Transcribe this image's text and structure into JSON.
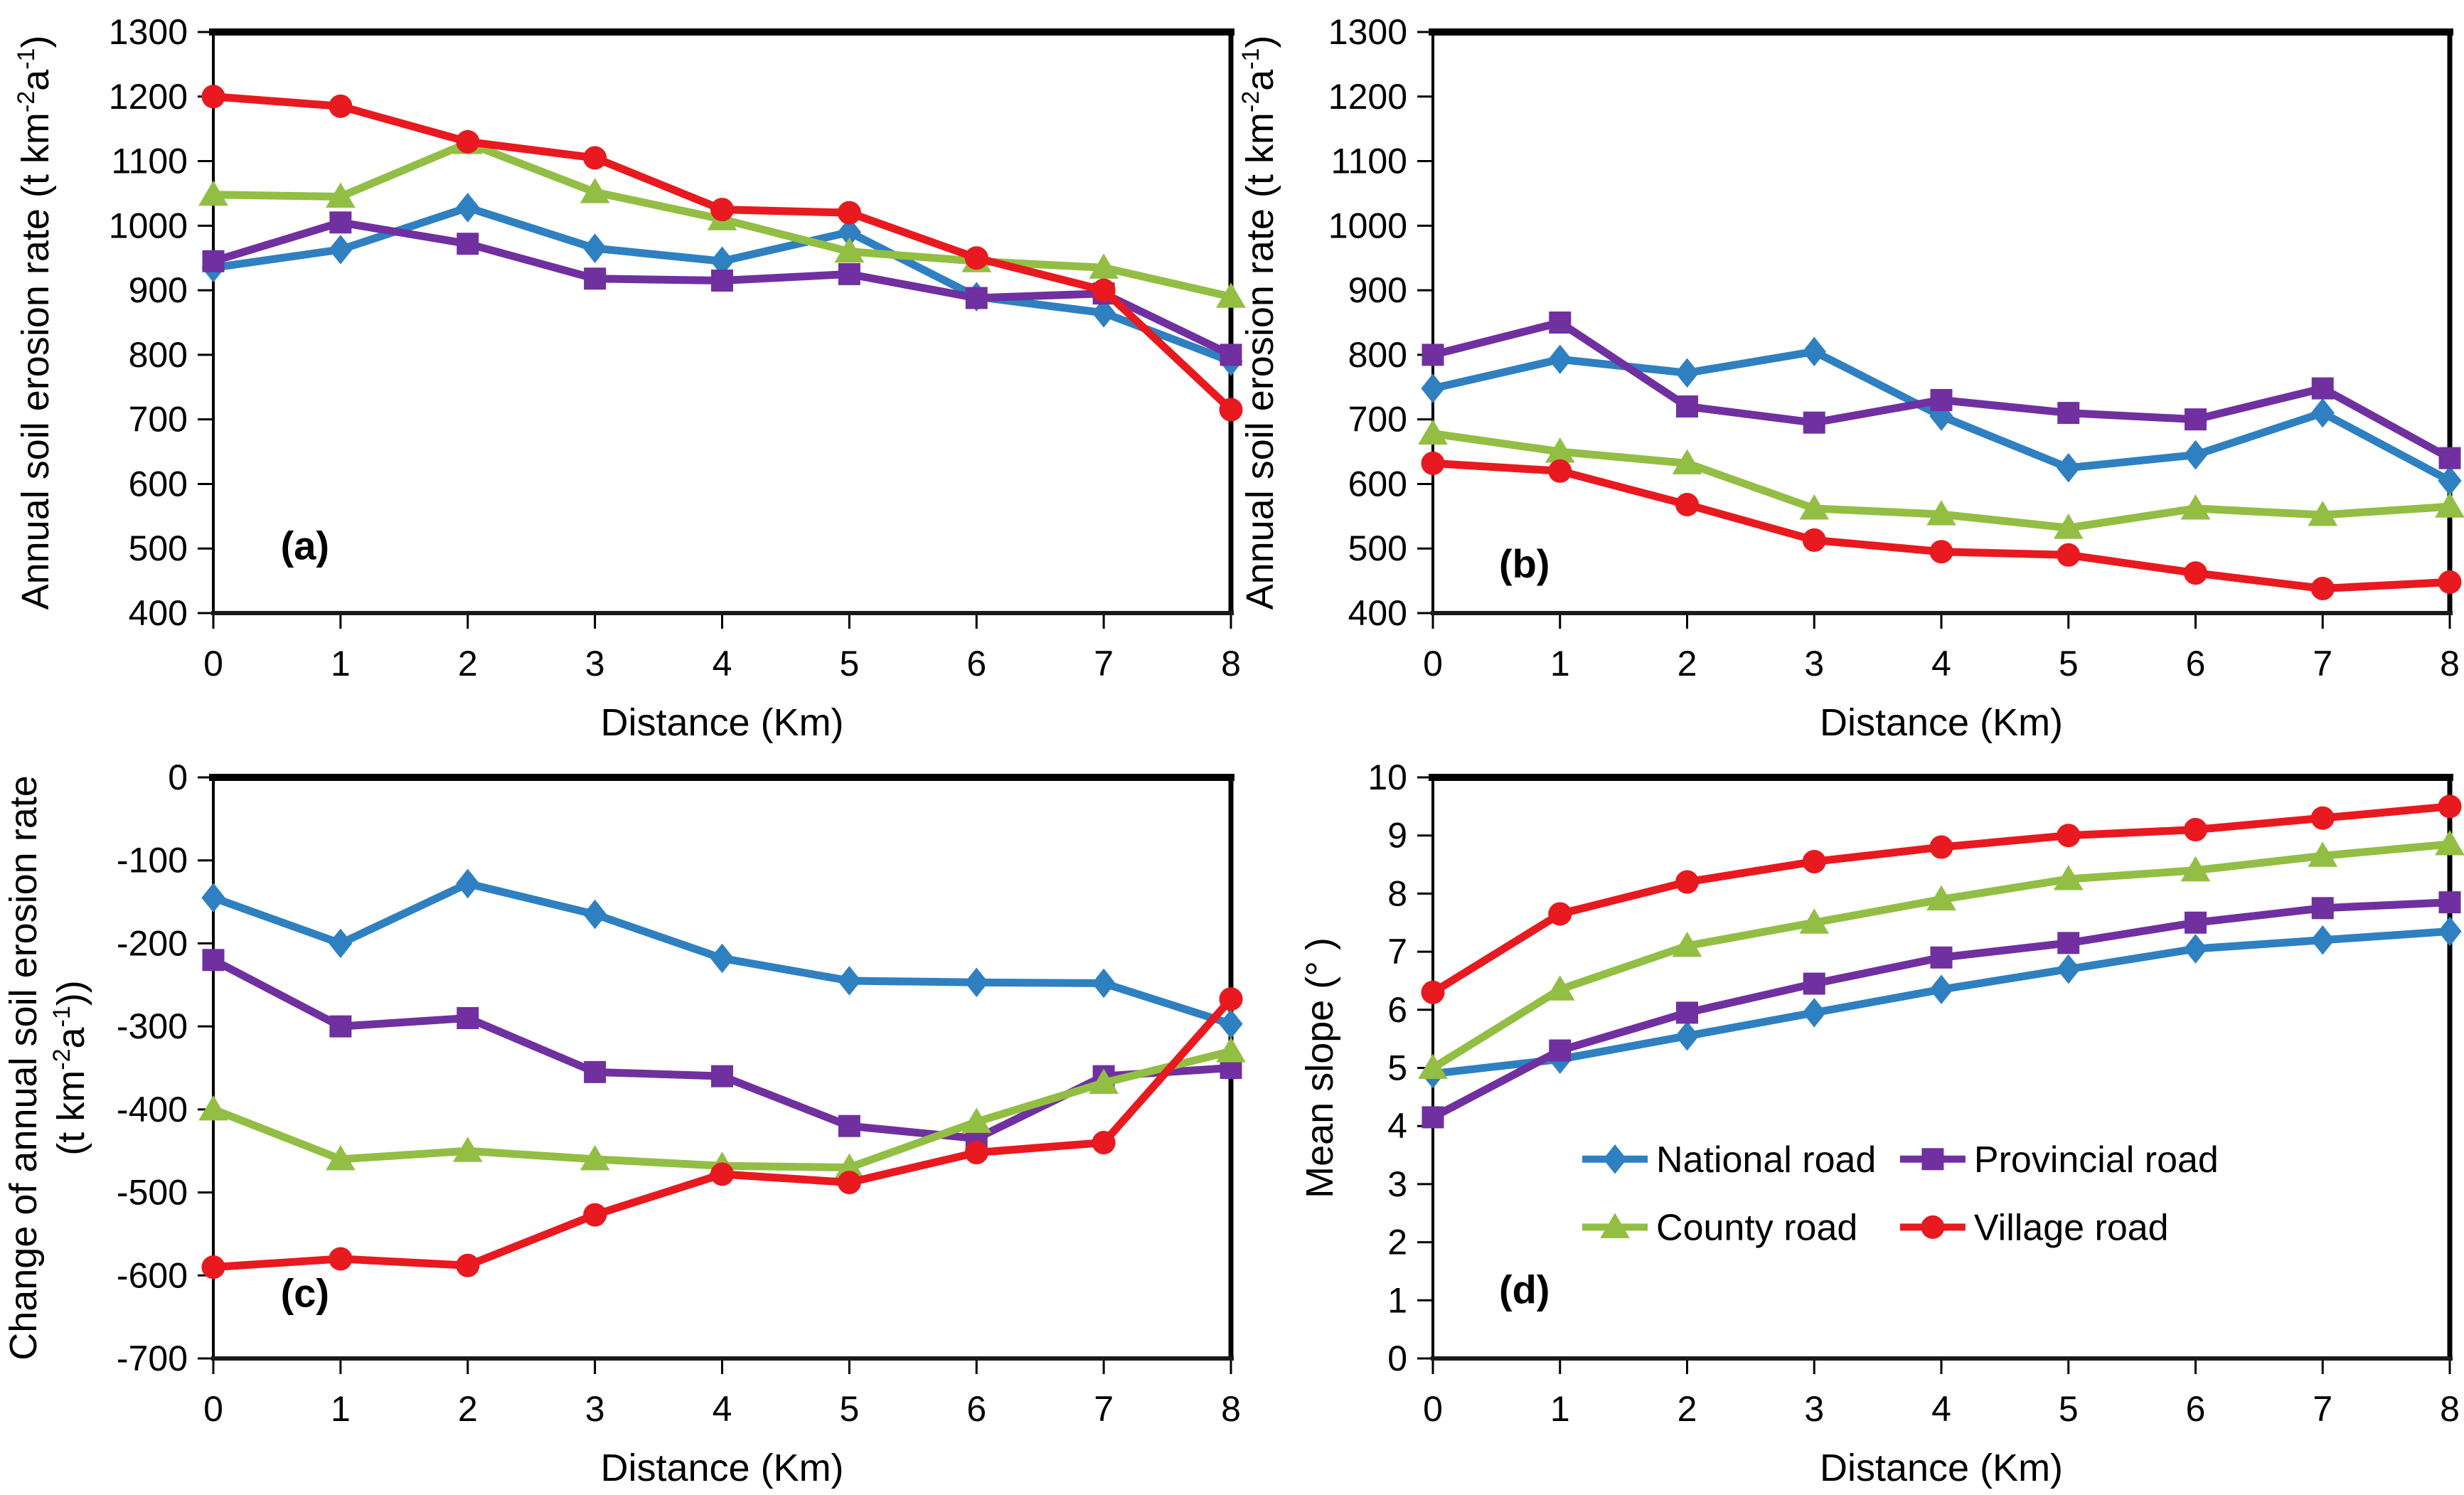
{
  "figure": {
    "background": "#ffffff",
    "axis_color": "#000000",
    "xlabel": "Distance (Km)",
    "x_ticks": [
      0,
      1,
      2,
      3,
      4,
      5,
      6,
      7,
      8
    ],
    "colors": {
      "national": "#2E80C1",
      "provincial": "#7030A0",
      "county": "#92BE44",
      "village": "#E8191F"
    },
    "legend_labels": [
      "National road",
      "Provincial road",
      "County road",
      "Village road"
    ]
  },
  "chart_data": [
    {
      "id": "a",
      "panel_label": "(a)",
      "type": "line",
      "x": [
        0,
        1,
        2,
        3,
        4,
        5,
        6,
        7,
        8
      ],
      "xlabel": "Distance (Km)",
      "ylim": [
        400,
        1300
      ],
      "ytick_step": 100,
      "ylabel_lines": [
        [
          {
            "t": "Annual soil erosion rate (t km"
          },
          {
            "sup": "-2"
          },
          {
            "t": "a"
          },
          {
            "sup": "-1"
          },
          {
            "t": ")"
          }
        ]
      ],
      "panel_label_pos": {
        "x": 0.72,
        "y": 483
      },
      "series": [
        {
          "name": "National road",
          "key": "national",
          "marker": "diamond",
          "values": [
            935,
            963,
            1028,
            965,
            945,
            990,
            890,
            865,
            790
          ]
        },
        {
          "name": "Provincial road",
          "key": "provincial",
          "marker": "square",
          "values": [
            945,
            1005,
            972,
            918,
            915,
            925,
            888,
            895,
            800
          ]
        },
        {
          "name": "County road",
          "key": "county",
          "marker": "triangle",
          "values": [
            1048,
            1045,
            1128,
            1052,
            1010,
            960,
            945,
            935,
            890
          ]
        },
        {
          "name": "Village road",
          "key": "village",
          "marker": "circle",
          "values": [
            1200,
            1185,
            1130,
            1105,
            1025,
            1020,
            950,
            900,
            715
          ]
        }
      ]
    },
    {
      "id": "b",
      "panel_label": "(b)",
      "type": "line",
      "x": [
        0,
        1,
        2,
        3,
        4,
        5,
        6,
        7,
        8
      ],
      "xlabel": "Distance (Km)",
      "ylim": [
        400,
        1300
      ],
      "ytick_step": 100,
      "ylabel_lines": [
        [
          {
            "t": "Annual soil erosion rate (t km"
          },
          {
            "sup": "-2"
          },
          {
            "t": "a"
          },
          {
            "sup": "-1"
          },
          {
            "t": ")"
          }
        ]
      ],
      "panel_label_pos": {
        "x": 0.72,
        "y": 455
      },
      "series": [
        {
          "name": "National road",
          "key": "national",
          "marker": "diamond",
          "values": [
            748,
            793,
            772,
            805,
            705,
            625,
            645,
            710,
            605
          ]
        },
        {
          "name": "Provincial road",
          "key": "provincial",
          "marker": "square",
          "values": [
            800,
            850,
            720,
            695,
            730,
            710,
            700,
            748,
            640
          ]
        },
        {
          "name": "County road",
          "key": "county",
          "marker": "triangle",
          "values": [
            678,
            650,
            632,
            562,
            553,
            532,
            562,
            552,
            565
          ]
        },
        {
          "name": "Village road",
          "key": "village",
          "marker": "circle",
          "values": [
            632,
            620,
            568,
            513,
            495,
            490,
            462,
            438,
            448
          ]
        }
      ]
    },
    {
      "id": "c",
      "panel_label": "(c)",
      "type": "line",
      "x": [
        0,
        1,
        2,
        3,
        4,
        5,
        6,
        7,
        8
      ],
      "xlabel": "Distance (Km)",
      "ylim": [
        -700,
        0
      ],
      "ytick_step": 100,
      "ylabel_lines": [
        [
          {
            "t": "Change of annual soil erosion rate"
          }
        ],
        [
          {
            "t": "(t km"
          },
          {
            "sup": "-2"
          },
          {
            "t": "a"
          },
          {
            "sup": "-1"
          },
          {
            "t": "))"
          }
        ]
      ],
      "panel_label_pos": {
        "x": 0.72,
        "y": -638
      },
      "series": [
        {
          "name": "National road",
          "key": "national",
          "marker": "diamond",
          "values": [
            -145,
            -200,
            -128,
            -165,
            -218,
            -245,
            -247,
            -248,
            -297
          ]
        },
        {
          "name": "Provincial road",
          "key": "provincial",
          "marker": "square",
          "values": [
            -220,
            -300,
            -290,
            -355,
            -360,
            -420,
            -435,
            -360,
            -350
          ]
        },
        {
          "name": "County road",
          "key": "county",
          "marker": "triangle",
          "values": [
            -400,
            -460,
            -450,
            -460,
            -468,
            -470,
            -415,
            -368,
            -330
          ]
        },
        {
          "name": "Village road",
          "key": "village",
          "marker": "circle",
          "values": [
            -590,
            -580,
            -588,
            -527,
            -478,
            -488,
            -452,
            -440,
            -267
          ]
        }
      ]
    },
    {
      "id": "d",
      "panel_label": "(d)",
      "type": "line",
      "x": [
        0,
        1,
        2,
        3,
        4,
        5,
        6,
        7,
        8
      ],
      "xlabel": "Distance (Km)",
      "ylim": [
        0,
        10
      ],
      "ytick_step": 1,
      "ylabel_lines": [
        [
          {
            "t": "Mean slope (° )"
          }
        ]
      ],
      "panel_label_pos": {
        "x": 0.72,
        "y": 0.95
      },
      "legend": {
        "items": [
          {
            "key": "national",
            "x": 1.175,
            "y": 3.43
          },
          {
            "key": "provincial",
            "x": 3.675,
            "y": 3.43
          },
          {
            "key": "county",
            "x": 1.175,
            "y": 2.26
          },
          {
            "key": "village",
            "x": 3.675,
            "y": 2.26
          }
        ]
      },
      "series": [
        {
          "name": "National road",
          "key": "national",
          "marker": "diamond",
          "values": [
            4.9,
            5.15,
            5.55,
            5.95,
            6.35,
            6.7,
            7.05,
            7.2,
            7.35
          ]
        },
        {
          "name": "Provincial road",
          "key": "provincial",
          "marker": "square",
          "values": [
            4.15,
            5.3,
            5.95,
            6.45,
            6.9,
            7.15,
            7.5,
            7.75,
            7.85
          ]
        },
        {
          "name": "County road",
          "key": "county",
          "marker": "triangle",
          "values": [
            5.0,
            6.35,
            7.1,
            7.5,
            7.9,
            8.25,
            8.4,
            8.65,
            8.85
          ]
        },
        {
          "name": "Village road",
          "key": "village",
          "marker": "circle",
          "values": [
            6.3,
            7.65,
            8.2,
            8.55,
            8.8,
            9.0,
            9.1,
            9.3,
            9.5
          ]
        }
      ]
    }
  ]
}
